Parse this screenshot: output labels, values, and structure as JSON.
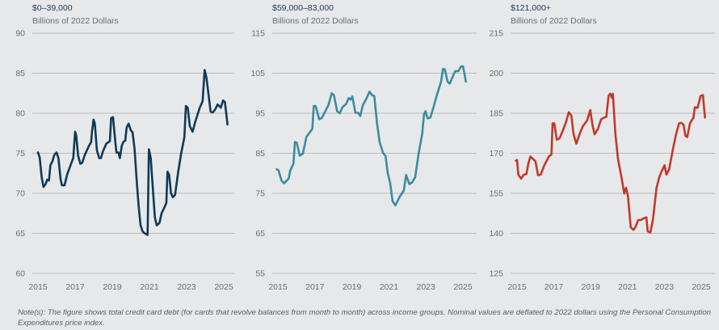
{
  "chart_data": [
    {
      "type": "line",
      "title": "$0–39,000",
      "ylabel": "Billions of 2022 Dollars",
      "ylim": [
        60,
        90
      ],
      "yticks": [
        60,
        65,
        70,
        75,
        80,
        85,
        90
      ],
      "xticks": [
        2015,
        2017,
        2019,
        2021,
        2023,
        2025
      ],
      "grid": true,
      "color": "#0f3a57",
      "x": [
        2015.0,
        2015.09,
        2015.2,
        2015.3,
        2015.42,
        2015.49,
        2015.59,
        2015.67,
        2015.78,
        2015.88,
        2016.0,
        2016.1,
        2016.22,
        2016.29,
        2016.43,
        2016.58,
        2016.75,
        2016.9,
        2017.0,
        2017.06,
        2017.16,
        2017.28,
        2017.38,
        2017.52,
        2017.74,
        2017.86,
        2017.91,
        2017.99,
        2018.06,
        2018.17,
        2018.29,
        2018.39,
        2018.49,
        2018.68,
        2018.87,
        2018.94,
        2019.04,
        2019.14,
        2019.22,
        2019.33,
        2019.41,
        2019.51,
        2019.59,
        2019.7,
        2019.77,
        2019.88,
        2019.99,
        2020.09,
        2020.2,
        2020.32,
        2020.42,
        2020.52,
        2020.64,
        2020.75,
        2020.9,
        2020.97,
        2021.07,
        2021.19,
        2021.29,
        2021.39,
        2021.54,
        2021.65,
        2021.8,
        2021.91,
        2021.97,
        2022.06,
        2022.16,
        2022.26,
        2022.38,
        2022.55,
        2022.7,
        2022.88,
        2022.96,
        2023.06,
        2023.17,
        2023.32,
        2023.46,
        2023.71,
        2023.86,
        2023.97,
        2024.07,
        2024.19,
        2024.29,
        2024.41,
        2024.55,
        2024.67,
        2024.84,
        2024.96,
        2025.06,
        2025.2
      ],
      "values": [
        75.1,
        74.5,
        72,
        70.8,
        71.2,
        71.7,
        71.6,
        73.5,
        74,
        74.8,
        75.1,
        74.4,
        71.7,
        71,
        71,
        72.4,
        73.5,
        74.4,
        77.7,
        77.2,
        74.7,
        73.7,
        73.8,
        74.8,
        75.9,
        76.4,
        77.7,
        79.2,
        78.7,
        75.4,
        74.4,
        74.4,
        75.2,
        76.2,
        76.5,
        79.4,
        79.5,
        77,
        75.1,
        75.1,
        74.4,
        75.9,
        76.4,
        76.6,
        78.2,
        78.7,
        77.9,
        77.6,
        75.5,
        71.3,
        68.3,
        66,
        65.2,
        65,
        64.8,
        75.5,
        74.4,
        70.3,
        67,
        66,
        66.3,
        67.5,
        68.2,
        68.8,
        72.7,
        72.3,
        70,
        69.5,
        69.8,
        72.7,
        74.9,
        77,
        80.9,
        80.7,
        78.4,
        77.7,
        78.9,
        80.7,
        81.5,
        85.4,
        84.4,
        82.1,
        80.2,
        80.1,
        80.5,
        81.1,
        80.7,
        81.6,
        81.4,
        78.6
      ]
    },
    {
      "type": "line",
      "title": "$59,000–83,000",
      "ylabel": "Billions of 2022 Dollars",
      "ylim": [
        55,
        115
      ],
      "yticks": [
        55,
        65,
        75,
        85,
        95,
        105,
        115
      ],
      "xticks": [
        2015,
        2017,
        2019,
        2021,
        2023,
        2025
      ],
      "grid": true,
      "color": "#3a8ca0",
      "x": [
        2014.94,
        2015.04,
        2015.19,
        2015.33,
        2015.48,
        2015.58,
        2015.67,
        2015.84,
        2015.92,
        2016.02,
        2016.18,
        2016.35,
        2016.54,
        2016.72,
        2016.86,
        2016.94,
        2017.04,
        2017.23,
        2017.37,
        2017.52,
        2017.74,
        2017.91,
        2018.03,
        2018.2,
        2018.35,
        2018.49,
        2018.68,
        2018.83,
        2018.93,
        2019.02,
        2019.19,
        2019.34,
        2019.45,
        2019.6,
        2019.77,
        2019.95,
        2020.09,
        2020.21,
        2020.36,
        2020.5,
        2020.68,
        2020.82,
        2020.94,
        2021.06,
        2021.2,
        2021.35,
        2021.59,
        2021.81,
        2021.93,
        2022.1,
        2022.25,
        2022.42,
        2022.61,
        2022.8,
        2022.9,
        2022.98,
        2023.09,
        2023.24,
        2023.41,
        2023.59,
        2023.82,
        2023.92,
        2024.02,
        2024.17,
        2024.29,
        2024.43,
        2024.58,
        2024.75,
        2024.9,
        2025.01,
        2025.16
      ],
      "values": [
        81,
        80.7,
        78.2,
        77.5,
        78.2,
        78.7,
        80.7,
        82.4,
        87.8,
        87.6,
        84.4,
        84.9,
        89.1,
        90.2,
        91.1,
        96.8,
        96.8,
        93.5,
        93.8,
        95.1,
        97.1,
        100,
        99.5,
        95.5,
        95,
        96.5,
        97.3,
        98.8,
        98.4,
        99.2,
        95.1,
        95.1,
        94.3,
        97.1,
        98.5,
        100.4,
        99.5,
        99.3,
        92.5,
        87.8,
        85.1,
        84.3,
        80,
        77.7,
        73,
        72,
        74.2,
        75.7,
        79.6,
        77.3,
        77.7,
        79,
        85.1,
        89.8,
        94.8,
        95.5,
        93.7,
        93.9,
        96.5,
        99.5,
        102.9,
        106,
        106,
        102.9,
        102.4,
        103.9,
        105.5,
        105.5,
        106.7,
        106.7,
        102.9
      ]
    },
    {
      "type": "line",
      "title": "$121,000+",
      "ylabel": "Billions of 2022 Dollars",
      "ylim": [
        125,
        215
      ],
      "yticks": [
        125,
        140,
        155,
        170,
        185,
        200,
        215
      ],
      "xticks": [
        2015,
        2017,
        2019,
        2021,
        2023,
        2025
      ],
      "grid": true,
      "color": "#c0392b",
      "x": [
        2014.93,
        2015.0,
        2015.07,
        2015.22,
        2015.37,
        2015.51,
        2015.61,
        2015.73,
        2015.85,
        2016.0,
        2016.14,
        2016.29,
        2016.46,
        2016.73,
        2016.87,
        2016.93,
        2017.02,
        2017.16,
        2017.31,
        2017.49,
        2017.66,
        2017.81,
        2017.95,
        2018.07,
        2018.22,
        2018.39,
        2018.58,
        2018.8,
        2018.98,
        2019.09,
        2019.21,
        2019.39,
        2019.56,
        2019.68,
        2019.85,
        2019.97,
        2020.06,
        2020.15,
        2020.2,
        2020.34,
        2020.48,
        2020.67,
        2020.82,
        2020.92,
        2021.02,
        2021.17,
        2021.32,
        2021.43,
        2021.58,
        2021.73,
        2021.87,
        2022.02,
        2022.09,
        2022.24,
        2022.38,
        2022.57,
        2022.72,
        2022.87,
        2023.01,
        2023.11,
        2023.26,
        2023.45,
        2023.63,
        2023.8,
        2023.92,
        2024.04,
        2024.14,
        2024.24,
        2024.39,
        2024.58,
        2024.65,
        2024.8,
        2024.97,
        2025.09,
        2025.2
      ],
      "values": [
        167.2,
        167.5,
        162,
        160.5,
        162,
        162.2,
        166,
        168.8,
        168,
        167,
        161.8,
        162,
        165.2,
        168.8,
        169.5,
        181.2,
        181.2,
        175.1,
        175.6,
        178.6,
        181.7,
        185.4,
        184,
        177.1,
        173.6,
        177.1,
        180.2,
        182.2,
        186.2,
        180.7,
        177.1,
        179.1,
        182.7,
        183.2,
        183.7,
        191.5,
        192.3,
        190.8,
        192.3,
        177.1,
        168,
        161,
        154.9,
        157.1,
        153.9,
        142.3,
        141.3,
        142.3,
        145,
        145,
        145.6,
        146,
        140.8,
        140.3,
        145.3,
        156.9,
        161,
        163.5,
        165.5,
        162,
        164,
        171.1,
        177.1,
        181.2,
        181.4,
        180.7,
        176.6,
        176.1,
        181.2,
        183.4,
        187.2,
        187,
        191.5,
        191.8,
        183.4
      ]
    }
  ],
  "note": "Note(s): The figure shows total credit card debt (for cards that revolve balances from month to month) across income groups. Nominal values are deflated to 2022 dollars using the Personal Consumption Expenditures price index.",
  "style": {
    "grid_color": "#b9bbbe",
    "tick_color": "#6b6d71",
    "title_color": "#1e3a55",
    "subtitle_color": "#6b6d71"
  }
}
